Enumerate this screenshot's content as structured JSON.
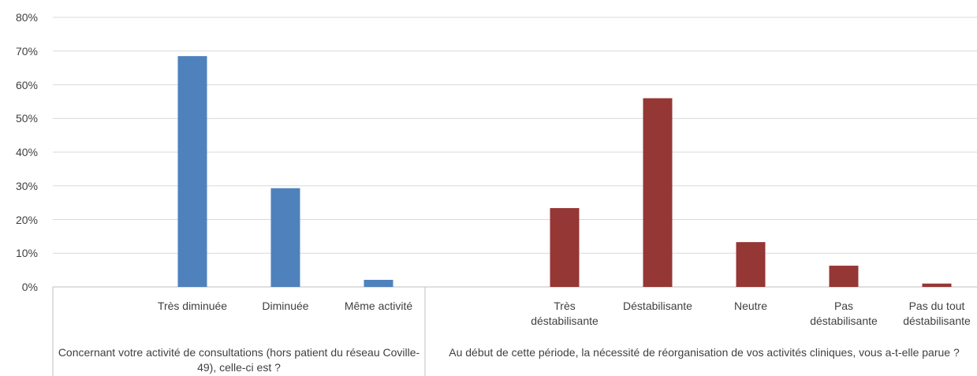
{
  "chart_data": {
    "type": "bar",
    "ylim": [
      0,
      80
    ],
    "yticks": [
      {
        "value": 0,
        "label": "0%"
      },
      {
        "value": 10,
        "label": "10%"
      },
      {
        "value": 20,
        "label": "20%"
      },
      {
        "value": 30,
        "label": "30%"
      },
      {
        "value": 40,
        "label": "40%"
      },
      {
        "value": 50,
        "label": "50%"
      },
      {
        "value": 60,
        "label": "60%"
      },
      {
        "value": 70,
        "label": "70%"
      },
      {
        "value": 80,
        "label": "80%"
      }
    ],
    "grid": true,
    "groups": [
      {
        "label": "Concernant votre activité de consultations (hors patient du réseau Coville-49), celle-ci est ?",
        "color": "#4f81bd",
        "categories": [
          null,
          "Très diminuée",
          "Diminuée",
          "Même activité"
        ],
        "values": [
          null,
          68.5,
          29.3,
          2.1
        ]
      },
      {
        "label": "Au début de cette période, la nécessité de réorganisation de vos activités cliniques, vous a-t-elle parue ?",
        "color": "#953735",
        "categories": [
          null,
          "Très déstabilisante",
          "Déstabilisante",
          "Neutre",
          "Pas déstabilisante",
          "Pas du tout déstabilisante"
        ],
        "values": [
          null,
          23.4,
          56.0,
          13.3,
          6.3,
          1.0
        ]
      }
    ]
  }
}
